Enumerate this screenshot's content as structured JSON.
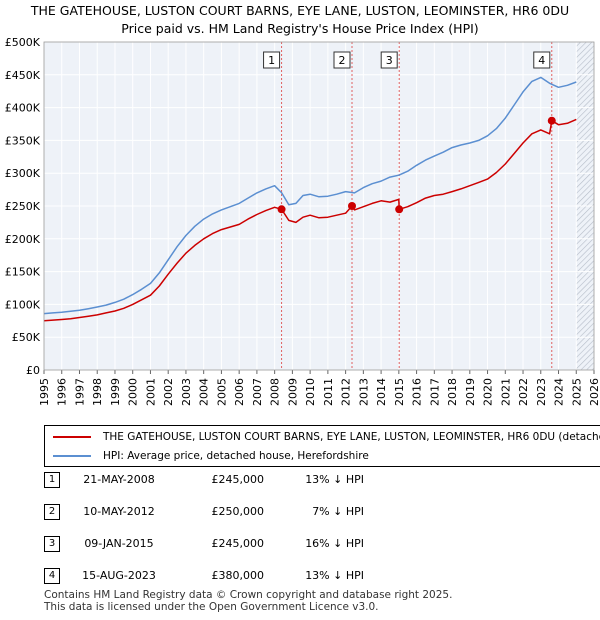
{
  "title_line1": "THE GATEHOUSE, LUSTON COURT BARNS, EYE LANE, LUSTON, LEOMINSTER, HR6 0DU",
  "title_line2": "Price paid vs. HM Land Registry's House Price Index (HPI)",
  "chart_data": {
    "type": "line",
    "ylim": [
      0,
      500000
    ],
    "y_ticks": [
      {
        "value": 0,
        "label": "£0"
      },
      {
        "value": 50000,
        "label": "£50K"
      },
      {
        "value": 100000,
        "label": "£100K"
      },
      {
        "value": 150000,
        "label": "£150K"
      },
      {
        "value": 200000,
        "label": "£200K"
      },
      {
        "value": 250000,
        "label": "£250K"
      },
      {
        "value": 300000,
        "label": "£300K"
      },
      {
        "value": 350000,
        "label": "£350K"
      },
      {
        "value": 400000,
        "label": "£400K"
      },
      {
        "value": 450000,
        "label": "£450K"
      },
      {
        "value": 500000,
        "label": "£500K"
      }
    ],
    "xlim": [
      1995,
      2026
    ],
    "x_ticks": [
      "1995",
      "1996",
      "1997",
      "1998",
      "1999",
      "2000",
      "2001",
      "2002",
      "2003",
      "2004",
      "2005",
      "2006",
      "2007",
      "2008",
      "2009",
      "2010",
      "2011",
      "2012",
      "2013",
      "2014",
      "2015",
      "2016",
      "2017",
      "2018",
      "2019",
      "2020",
      "2021",
      "2022",
      "2023",
      "2024",
      "2025",
      "2026"
    ],
    "future_start": 2025.0,
    "series": [
      {
        "name": "HPI: Average price, detached house, Herefordshire",
        "color": "#5b8fd1",
        "x": [
          1995.0,
          1995.5,
          1996.0,
          1996.5,
          1997.0,
          1997.5,
          1998.0,
          1998.5,
          1999.0,
          1999.5,
          2000.0,
          2000.5,
          2001.0,
          2001.5,
          2002.0,
          2002.5,
          2003.0,
          2003.5,
          2004.0,
          2004.5,
          2005.0,
          2005.5,
          2006.0,
          2006.5,
          2007.0,
          2007.5,
          2008.0,
          2008.4,
          2008.8,
          2009.2,
          2009.6,
          2010.0,
          2010.5,
          2011.0,
          2011.5,
          2012.0,
          2012.5,
          2013.0,
          2013.5,
          2014.0,
          2014.5,
          2015.0,
          2015.5,
          2016.0,
          2016.5,
          2017.0,
          2017.5,
          2018.0,
          2018.5,
          2019.0,
          2019.5,
          2020.0,
          2020.5,
          2021.0,
          2021.5,
          2022.0,
          2022.5,
          2023.0,
          2023.5,
          2024.0,
          2024.5,
          2025.0
        ],
        "values": [
          86000,
          87000,
          88000,
          89500,
          91000,
          93500,
          96000,
          99000,
          103000,
          108000,
          115000,
          123000,
          132000,
          148000,
          168000,
          188000,
          205000,
          219000,
          230000,
          238000,
          244000,
          249000,
          254000,
          262000,
          270000,
          276000,
          281000,
          270000,
          252000,
          254000,
          266000,
          268000,
          264000,
          265000,
          268000,
          272000,
          270000,
          278000,
          284000,
          288000,
          294000,
          297000,
          303000,
          312000,
          320000,
          326000,
          332000,
          339000,
          343000,
          346000,
          350000,
          357000,
          368000,
          384000,
          404000,
          424000,
          440000,
          446000,
          437000,
          431000,
          434000,
          439000
        ]
      },
      {
        "name": "THE GATEHOUSE, LUSTON COURT BARNS, EYE LANE, LUSTON, LEOMINSTER, HR6 0DU (detached house)",
        "color": "#cc0000",
        "x": [
          1995.0,
          1995.5,
          1996.0,
          1996.5,
          1997.0,
          1997.5,
          1998.0,
          1998.5,
          1999.0,
          1999.5,
          2000.0,
          2000.5,
          2001.0,
          2001.5,
          2002.0,
          2002.5,
          2003.0,
          2003.5,
          2004.0,
          2004.5,
          2005.0,
          2005.5,
          2006.0,
          2006.5,
          2007.0,
          2007.5,
          2008.0,
          2008.39,
          2008.8,
          2009.2,
          2009.6,
          2010.0,
          2010.5,
          2011.0,
          2011.5,
          2012.0,
          2012.36,
          2012.5,
          2013.0,
          2013.5,
          2014.0,
          2014.5,
          2015.0,
          2015.02,
          2015.5,
          2016.0,
          2016.5,
          2017.0,
          2017.5,
          2018.0,
          2018.5,
          2019.0,
          2019.5,
          2020.0,
          2020.5,
          2021.0,
          2021.5,
          2022.0,
          2022.5,
          2023.0,
          2023.5,
          2023.62,
          2024.0,
          2024.5,
          2025.0
        ],
        "values": [
          75000,
          76000,
          77000,
          78000,
          80000,
          82000,
          84000,
          87000,
          90000,
          94000,
          100000,
          107000,
          114000,
          128000,
          146000,
          163000,
          178000,
          190000,
          200000,
          208000,
          214000,
          218000,
          222000,
          230000,
          237000,
          243000,
          248000,
          245000,
          228000,
          225000,
          233000,
          236000,
          232000,
          233000,
          236000,
          239000,
          250000,
          244000,
          249000,
          254000,
          258000,
          256000,
          260000,
          245000,
          249000,
          255000,
          262000,
          266000,
          268000,
          272000,
          276000,
          281000,
          286000,
          291000,
          301000,
          314000,
          330000,
          346000,
          360000,
          366000,
          360000,
          380000,
          374000,
          376000,
          382000
        ]
      }
    ],
    "sales": [
      {
        "label": "1",
        "x": 2008.39,
        "y": 245000
      },
      {
        "label": "2",
        "x": 2012.36,
        "y": 250000
      },
      {
        "label": "3",
        "x": 2015.02,
        "y": 245000
      },
      {
        "label": "4",
        "x": 2023.62,
        "y": 380000
      }
    ]
  },
  "legend": {
    "property_label": "THE GATEHOUSE, LUSTON COURT BARNS, EYE LANE, LUSTON, LEOMINSTER, HR6 0DU (detached house)",
    "hpi_label": "HPI: Average price, detached house, Herefordshire",
    "property_color": "#cc0000",
    "hpi_color": "#5b8fd1"
  },
  "sales_table": [
    {
      "num": "1",
      "date": "21-MAY-2008",
      "price": "£245,000",
      "hpi": "13% ↓ HPI"
    },
    {
      "num": "2",
      "date": "10-MAY-2012",
      "price": "£250,000",
      "hpi": "7% ↓ HPI"
    },
    {
      "num": "3",
      "date": "09-JAN-2015",
      "price": "£245,000",
      "hpi": "16% ↓ HPI"
    },
    {
      "num": "4",
      "date": "15-AUG-2023",
      "price": "£380,000",
      "hpi": "13% ↓ HPI"
    }
  ],
  "footer_line1": "Contains HM Land Registry data © Crown copyright and database right 2025.",
  "footer_line2": "This data is licensed under the Open Government Licence v3.0."
}
